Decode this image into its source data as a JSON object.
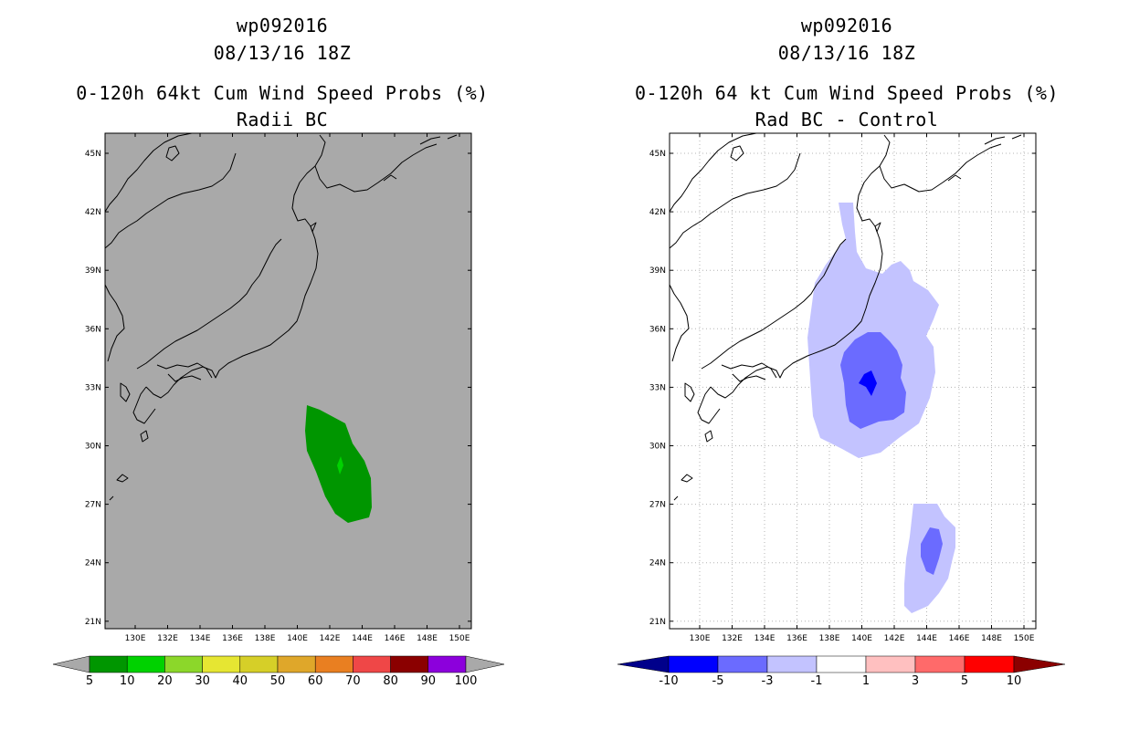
{
  "panels": [
    {
      "storm_id": "wp092016",
      "datetime": "08/13/16 18Z",
      "title": "0-120h 64kt Cum Wind Speed Probs (%)",
      "subtitle": "Radii BC",
      "background_color": "#a9a9a9",
      "colorbar": {
        "labels": [
          "5",
          "10",
          "20",
          "30",
          "40",
          "50",
          "60",
          "70",
          "80",
          "90",
          "100"
        ],
        "colors": [
          "#009600",
          "#00d200",
          "#8cd72a",
          "#e6e632",
          "#d6cf28",
          "#dfa72a",
          "#e97f21",
          "#ef4747",
          "#8b0000",
          "#8c00dc"
        ]
      }
    },
    {
      "storm_id": "wp092016",
      "datetime": "08/13/16 18Z",
      "title": "0-120h 64 kt Cum Wind Speed Probs (%)",
      "subtitle": "Rad BC - Control",
      "background_color": "#ffffff",
      "colorbar": {
        "labels": [
          "-10",
          "-5",
          "-3",
          "-1",
          "1",
          "3",
          "5",
          "10"
        ],
        "colors": [
          "#00008b",
          "#0000ff",
          "#6b6bff",
          "#c3c3ff",
          "#ffffff",
          "#ffc0c0",
          "#ff6a6a",
          "#ff0000",
          "#8b0000"
        ]
      }
    }
  ],
  "axes": {
    "lat_labels": [
      "45N",
      "42N",
      "39N",
      "36N",
      "33N",
      "30N",
      "27N",
      "24N",
      "21N"
    ],
    "lon_labels": [
      "130E",
      "132E",
      "134E",
      "136E",
      "138E",
      "140E",
      "142E",
      "144E",
      "146E",
      "148E",
      "150E"
    ]
  }
}
